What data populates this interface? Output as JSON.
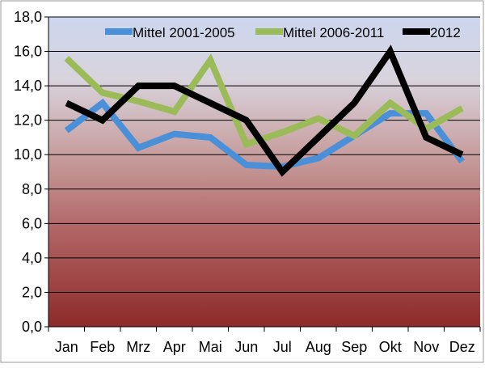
{
  "chart_data": {
    "type": "line",
    "categories": [
      "Jan",
      "Feb",
      "Mrz",
      "Apr",
      "Mai",
      "Jun",
      "Jul",
      "Aug",
      "Sep",
      "Okt",
      "Nov",
      "Dez"
    ],
    "series": [
      {
        "name": "Mittel 2001-2005",
        "color": "#4a90d9",
        "values": [
          11.4,
          13.0,
          10.4,
          11.2,
          11.0,
          9.4,
          9.3,
          9.8,
          11.1,
          12.4,
          12.4,
          9.6
        ]
      },
      {
        "name": "Mittel 2006-2011",
        "color": "#9bbb59",
        "values": [
          15.6,
          13.6,
          13.1,
          12.5,
          15.5,
          10.6,
          11.3,
          12.1,
          11.1,
          13.0,
          11.5,
          12.7
        ]
      },
      {
        "name": "2012",
        "color": "#000000",
        "values": [
          13.0,
          12.0,
          14.0,
          14.0,
          13.0,
          12.0,
          9.0,
          11.0,
          13.0,
          16.0,
          11.0,
          10.0
        ]
      }
    ],
    "ylim": [
      0,
      18
    ],
    "yticks": [
      "0,0",
      "2,0",
      "4,0",
      "6,0",
      "8,0",
      "10,0",
      "12,0",
      "14,0",
      "16,0",
      "18,0"
    ],
    "legend_position": "top",
    "grid": true,
    "background": "gradient light blue to dark red"
  }
}
